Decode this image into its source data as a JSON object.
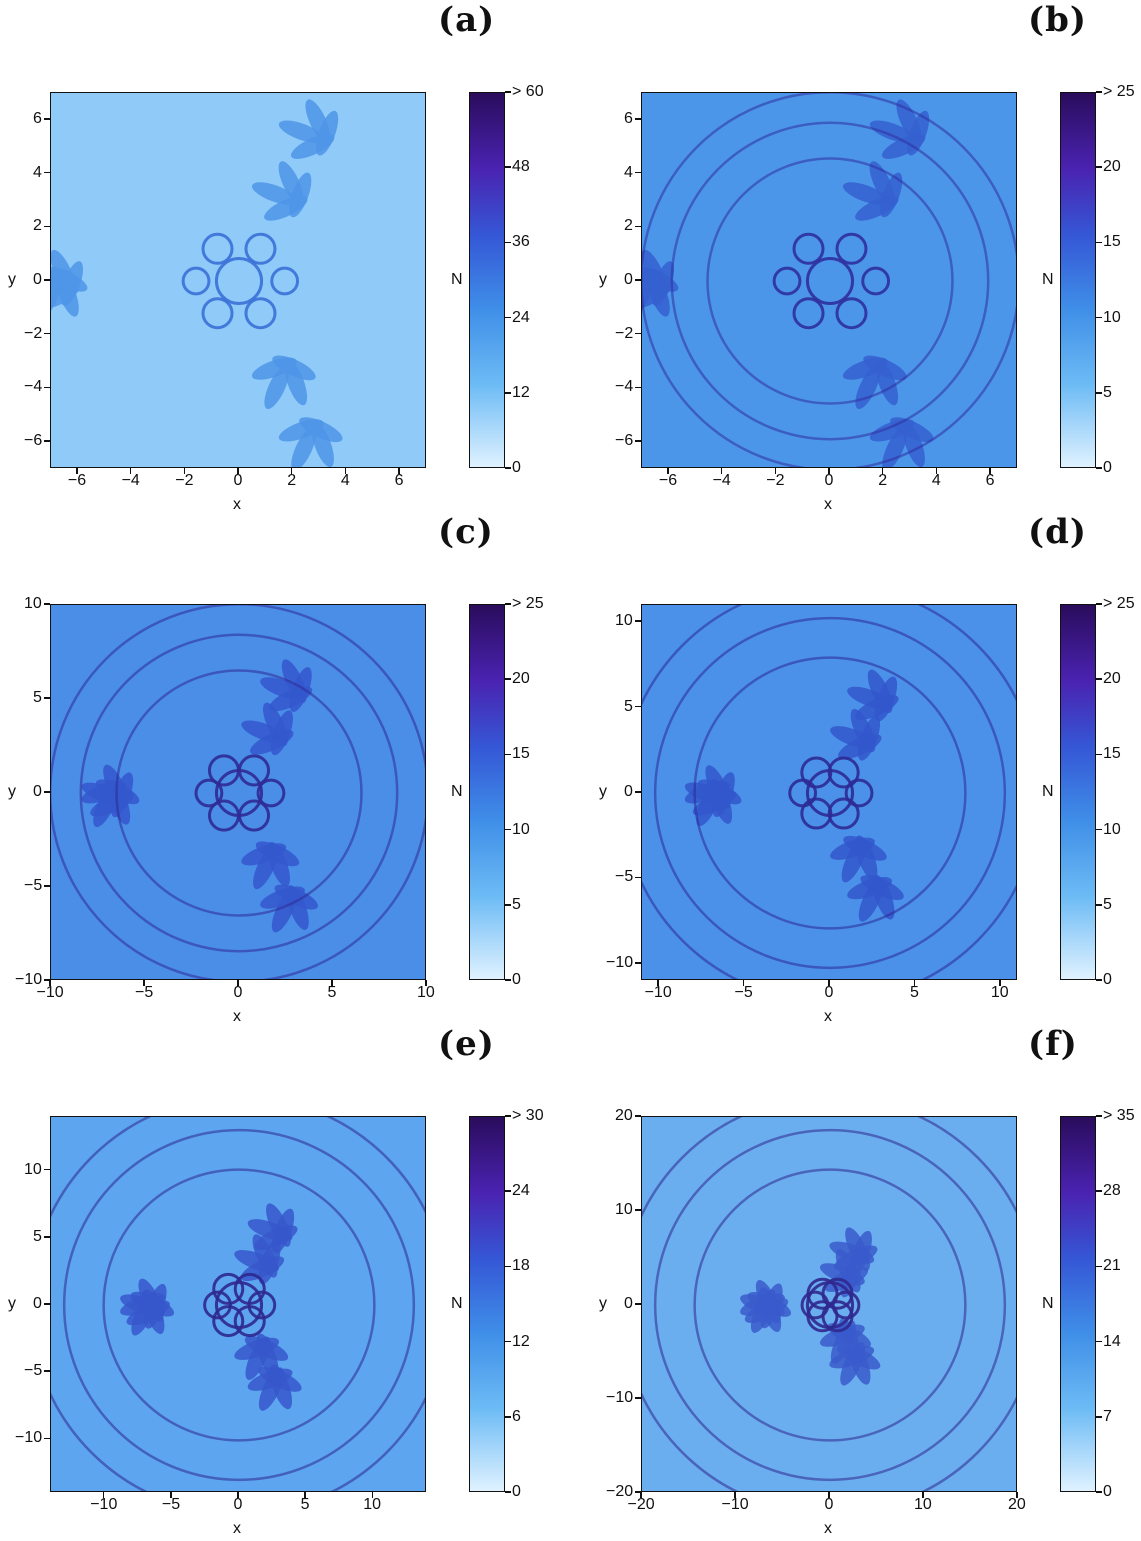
{
  "chart_data": [
    {
      "type": "heatmap",
      "panel_label": "(a)",
      "xlabel": "x",
      "ylabel": "y",
      "colorbar_label": "N",
      "xlim": [
        -7,
        7
      ],
      "ylim": [
        -7,
        7
      ],
      "xticks": [
        "−6",
        "−4",
        "−2",
        "0",
        "2",
        "4",
        "6"
      ],
      "yticks": [
        "6",
        "4",
        "2",
        "0",
        "−2",
        "−4",
        "−6"
      ],
      "colorbar_ticks": [
        "0",
        "12",
        "24",
        "36",
        "48",
        "> 60"
      ],
      "colorbar_range": [
        0,
        60
      ]
    },
    {
      "type": "heatmap",
      "panel_label": "(b)",
      "xlabel": "x",
      "ylabel": "y",
      "colorbar_label": "N",
      "xlim": [
        -7,
        7
      ],
      "ylim": [
        -7,
        7
      ],
      "xticks": [
        "−6",
        "−4",
        "−2",
        "0",
        "2",
        "4",
        "6"
      ],
      "yticks": [
        "6",
        "4",
        "2",
        "0",
        "−2",
        "−4",
        "−6"
      ],
      "colorbar_ticks": [
        "0",
        "5",
        "10",
        "15",
        "20",
        "> 25"
      ],
      "colorbar_range": [
        0,
        25
      ]
    },
    {
      "type": "heatmap",
      "panel_label": "(c)",
      "xlabel": "x",
      "ylabel": "y",
      "colorbar_label": "N",
      "xlim": [
        -10,
        10
      ],
      "ylim": [
        -10,
        10
      ],
      "xticks": [
        "−10",
        "−5",
        "0",
        "5",
        "10"
      ],
      "yticks": [
        "10",
        "5",
        "0",
        "−5",
        "−10"
      ],
      "colorbar_ticks": [
        "0",
        "5",
        "10",
        "15",
        "20",
        "> 25"
      ],
      "colorbar_range": [
        0,
        25
      ]
    },
    {
      "type": "heatmap",
      "panel_label": "(d)",
      "xlabel": "x",
      "ylabel": "y",
      "colorbar_label": "N",
      "xlim": [
        -11,
        11
      ],
      "ylim": [
        -11,
        11
      ],
      "xticks": [
        "−10",
        "−5",
        "0",
        "5",
        "10"
      ],
      "yticks": [
        "10",
        "5",
        "0",
        "−5",
        "−10"
      ],
      "colorbar_ticks": [
        "0",
        "5",
        "10",
        "15",
        "20",
        "> 25"
      ],
      "colorbar_range": [
        0,
        25
      ]
    },
    {
      "type": "heatmap",
      "panel_label": "(e)",
      "xlabel": "x",
      "ylabel": "y",
      "colorbar_label": "N",
      "xlim": [
        -14,
        14
      ],
      "ylim": [
        -14,
        14
      ],
      "xticks": [
        "−10",
        "−5",
        "0",
        "5",
        "10"
      ],
      "yticks": [
        "10",
        "5",
        "0",
        "−5",
        "−10"
      ],
      "colorbar_ticks": [
        "0",
        "6",
        "12",
        "18",
        "24",
        "> 30"
      ],
      "colorbar_range": [
        0,
        30
      ]
    },
    {
      "type": "heatmap",
      "panel_label": "(f)",
      "xlabel": "x",
      "ylabel": "y",
      "colorbar_label": "N",
      "xlim": [
        -20,
        20
      ],
      "ylim": [
        -20,
        20
      ],
      "xticks": [
        "−20",
        "−10",
        "0",
        "10",
        "20"
      ],
      "yticks": [
        "20",
        "10",
        "0",
        "−10",
        "−20"
      ],
      "colorbar_ticks": [
        "0",
        "7",
        "14",
        "21",
        "28",
        "> 35"
      ],
      "colorbar_range": [
        0,
        35
      ]
    }
  ]
}
